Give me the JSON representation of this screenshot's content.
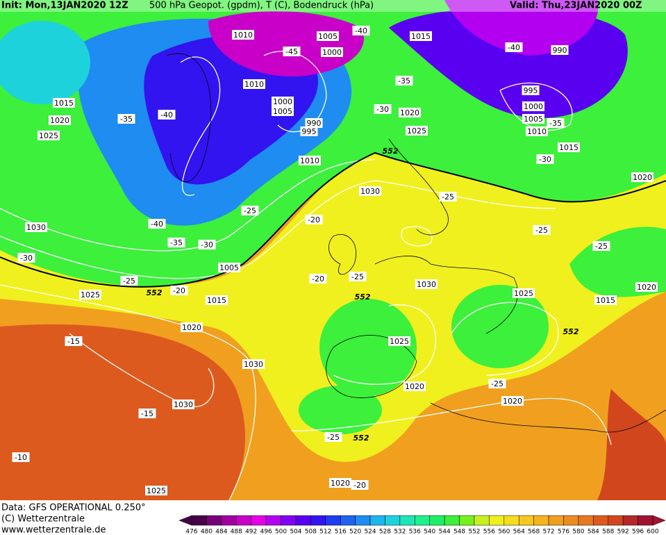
{
  "header": {
    "init": "Init: Mon,13JAN2020 12Z",
    "title": "500 hPa Geopot. (gpdm), T (C), Bodendruck (hPa)",
    "valid": "Valid: Thu,23JAN2020 00Z"
  },
  "footer": {
    "source": "Data: GFS OPERATIONAL 0.250°",
    "copyright": "(C) Wetterzentrale",
    "url": "www.wetterzentrale.de"
  },
  "colorbar": {
    "labels": [
      "476",
      "480",
      "484",
      "488",
      "492",
      "496",
      "500",
      "504",
      "508",
      "512",
      "516",
      "520",
      "524",
      "528",
      "532",
      "536",
      "540",
      "544",
      "548",
      "552",
      "556",
      "560",
      "564",
      "568",
      "572",
      "576",
      "580",
      "584",
      "588",
      "592",
      "596",
      "600"
    ],
    "colors": [
      "#48004a",
      "#78007a",
      "#a000a0",
      "#c800c8",
      "#e600e6",
      "#b400f0",
      "#8200f0",
      "#5a00f0",
      "#3214f0",
      "#1e3cf0",
      "#1e64f0",
      "#1e8cf0",
      "#1eb4f0",
      "#1ed2dc",
      "#1ee6b4",
      "#1ef08c",
      "#1ef064",
      "#3cf03c",
      "#78f01e",
      "#c8f01e",
      "#f0f01e",
      "#f5dc1e",
      "#f5c81e",
      "#f5b41e",
      "#f0a01e",
      "#eb8c1e",
      "#e6781e",
      "#dc5a1e",
      "#d2461e",
      "#b42828",
      "#a01432"
    ]
  },
  "contour_labels": [
    "1010",
    "1005",
    "-40",
    "1015",
    "-40",
    "990",
    "-45",
    "1000",
    "1010",
    "-35",
    "995",
    "1000",
    "1005",
    "-30",
    "1020",
    "1000",
    "1005",
    "-35",
    "1015",
    "-35",
    "-40",
    "1020",
    "1025",
    "1025",
    "990",
    "995",
    "1010",
    "1015",
    "-30",
    "1010",
    "552",
    "1020",
    "1030",
    "-25",
    "-25",
    "-20",
    "-40",
    "1030",
    "-25",
    "-35",
    "-30",
    "-25",
    "-30",
    "1005",
    "-20",
    "-25",
    "-25",
    "1030",
    "1020",
    "1025",
    "552",
    "-20",
    "1025",
    "552",
    "1015",
    "1015",
    "1020",
    "552",
    "-15",
    "1025",
    "1030",
    "-25",
    "1020",
    "1030",
    "1020",
    "-15",
    "-25",
    "552",
    "-10",
    "1020",
    "-20",
    "1025"
  ]
}
